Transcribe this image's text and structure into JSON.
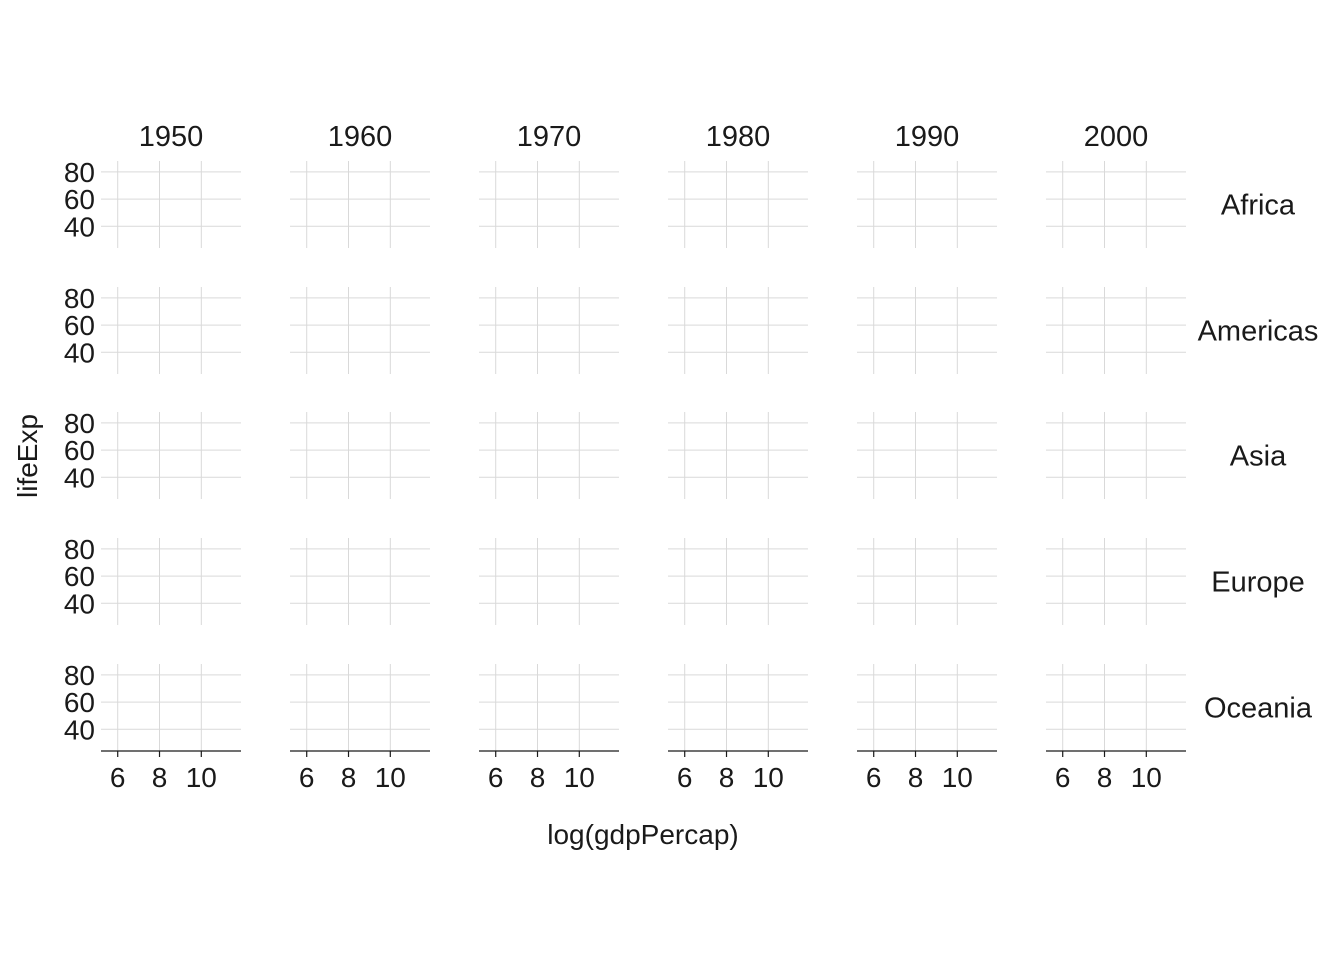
{
  "chart_data": {
    "type": "scatter",
    "title": "",
    "xlabel": "log(gdpPercap)",
    "ylabel": "lifeExp",
    "col_facets": [
      "1950",
      "1960",
      "1970",
      "1980",
      "1990",
      "2000"
    ],
    "row_facets": [
      "Africa",
      "Americas",
      "Asia",
      "Europe",
      "Oceania"
    ],
    "x_ticks": [
      6,
      8,
      10
    ],
    "y_ticks": [
      40,
      60,
      80
    ],
    "xlim": [
      5.2,
      11.9
    ],
    "ylim": [
      24,
      88
    ],
    "grid": true,
    "points": []
  }
}
